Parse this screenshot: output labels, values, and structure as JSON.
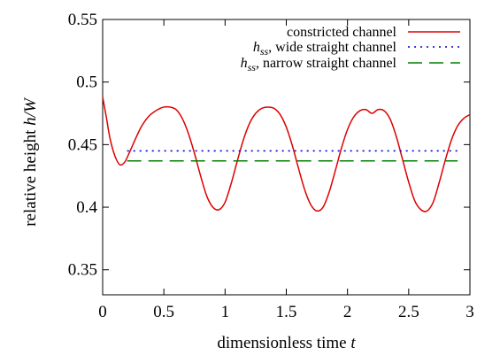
{
  "chart_data": {
    "type": "line",
    "xlabel_prefix": "dimensionless time ",
    "xlabel_var": "t",
    "ylabel_prefix": "relative height ",
    "ylabel_var": "h/W",
    "xlim": [
      0,
      3
    ],
    "ylim": [
      0.33,
      0.55
    ],
    "xticks": [
      0,
      0.5,
      1,
      1.5,
      2,
      2.5,
      3
    ],
    "xtick_labels": [
      "0",
      "0.5",
      "1",
      "1.5",
      "2",
      "2.5",
      "3"
    ],
    "yticks": [
      0.35,
      0.4,
      0.45,
      0.5,
      0.55
    ],
    "ytick_labels": [
      "0.35",
      "0.4",
      "0.45",
      "0.5",
      "0.55"
    ],
    "grid": false,
    "legend_position": "top-right",
    "series": [
      {
        "name": "constricted channel",
        "style": "solid",
        "color": "#dd0000",
        "x": [
          0,
          0.03,
          0.06,
          0.1,
          0.14,
          0.18,
          0.22,
          0.27,
          0.32,
          0.38,
          0.45,
          0.5,
          0.55,
          0.6,
          0.65,
          0.7,
          0.75,
          0.8,
          0.85,
          0.9,
          0.95,
          1.0,
          1.05,
          1.1,
          1.15,
          1.2,
          1.25,
          1.3,
          1.35,
          1.4,
          1.45,
          1.5,
          1.55,
          1.6,
          1.65,
          1.7,
          1.75,
          1.8,
          1.85,
          1.9,
          1.95,
          2.0,
          2.05,
          2.1,
          2.15,
          2.2,
          2.25,
          2.3,
          2.35,
          2.4,
          2.45,
          2.5,
          2.55,
          2.6,
          2.65,
          2.7,
          2.75,
          2.8,
          2.85,
          2.9,
          2.95,
          3.0
        ],
        "y": [
          0.488,
          0.472,
          0.455,
          0.441,
          0.434,
          0.436,
          0.444,
          0.455,
          0.465,
          0.473,
          0.478,
          0.48,
          0.48,
          0.478,
          0.471,
          0.459,
          0.443,
          0.425,
          0.409,
          0.4,
          0.398,
          0.404,
          0.419,
          0.437,
          0.454,
          0.467,
          0.475,
          0.479,
          0.48,
          0.479,
          0.474,
          0.464,
          0.449,
          0.431,
          0.414,
          0.402,
          0.397,
          0.4,
          0.412,
          0.429,
          0.447,
          0.462,
          0.472,
          0.477,
          0.478,
          0.475,
          0.478,
          0.477,
          0.47,
          0.456,
          0.438,
          0.42,
          0.405,
          0.398,
          0.397,
          0.404,
          0.42,
          0.438,
          0.454,
          0.465,
          0.471,
          0.474
        ]
      },
      {
        "name_var": "h",
        "name_sub": "ss",
        "name_rest": ", wide straight channel",
        "style": "dotted",
        "color": "#0000cc",
        "x": [
          0.2,
          2.9
        ],
        "y": [
          0.445,
          0.445
        ]
      },
      {
        "name_var": "h",
        "name_sub": "ss",
        "name_rest": ", narrow straight channel",
        "style": "dashed",
        "color": "#008000",
        "x": [
          0.2,
          2.9
        ],
        "y": [
          0.437,
          0.437
        ]
      }
    ]
  }
}
